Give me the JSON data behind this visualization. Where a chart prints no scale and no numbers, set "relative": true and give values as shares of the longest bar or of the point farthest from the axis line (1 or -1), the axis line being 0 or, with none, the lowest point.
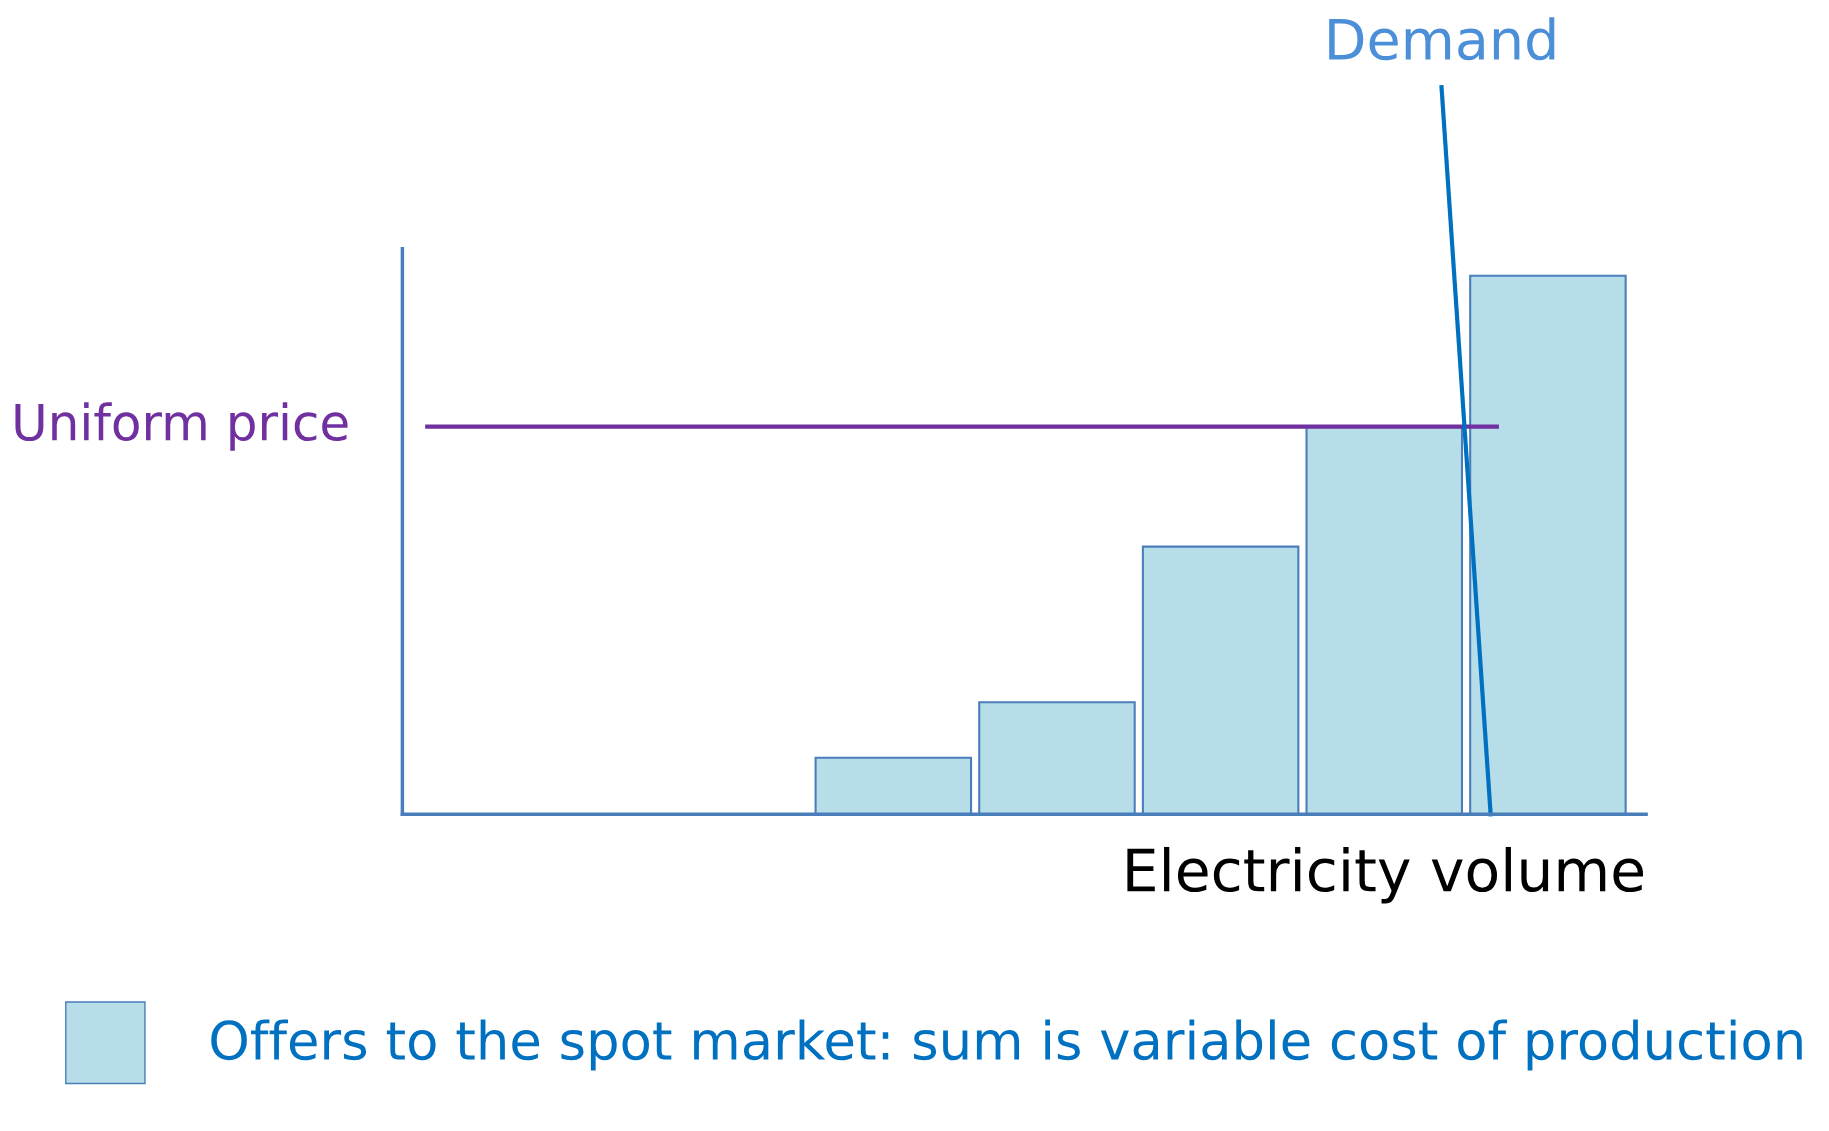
{
  "chart_data": {
    "type": "bar",
    "relative": true,
    "categories": [
      null,
      null,
      null,
      null,
      null
    ],
    "series": [
      {
        "name": "Offers to the spot market: sum is variable cost of production",
        "color": "#b7dde8",
        "values": [
          0.105,
          0.208,
          0.497,
          0.72,
          1
        ]
      }
    ],
    "xlabel": "Electricity volume",
    "ref_lines": [
      {
        "axis": "y",
        "value": 0.72,
        "label": "Uniform price",
        "color": "#7030a0"
      }
    ],
    "annotations": [
      "Demand"
    ],
    "legend": "bottom",
    "grid": false
  }
}
